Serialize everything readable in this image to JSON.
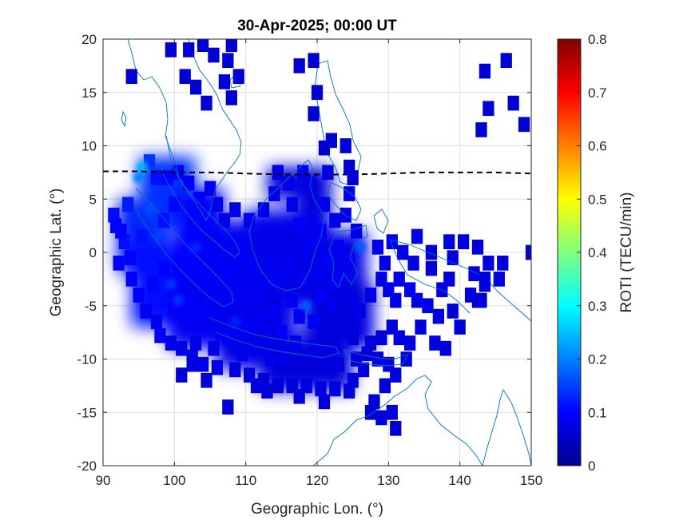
{
  "chart_data": {
    "type": "heatmap",
    "title": "30-Apr-2025; 00:00 UT",
    "xlabel": "Geographic Lon. (°)",
    "ylabel": "Geographic Lat. (°)",
    "xlim": [
      90,
      150
    ],
    "ylim": [
      -20,
      20
    ],
    "xticks": [
      "90",
      "100",
      "110",
      "120",
      "130",
      "140",
      "150"
    ],
    "yticks": [
      "20",
      "15",
      "10",
      "5",
      "0",
      "-5",
      "-10",
      "-15",
      "-20"
    ],
    "grid": true,
    "colormap": "jet",
    "colorbar": {
      "label": "ROTI (TECU/min)",
      "range": [
        0,
        0.8
      ],
      "ticks": [
        "0.8",
        "0.7",
        "0.6",
        "0.5",
        "0.4",
        "0.3",
        "0.2",
        "0.1",
        "0"
      ],
      "colors": [
        "#00008f",
        "#0000ff",
        "#0080ff",
        "#00ffff",
        "#80ff80",
        "#ffff00",
        "#ff8000",
        "#ff0000",
        "#800000"
      ]
    },
    "magnetic_equator": [
      [
        90,
        7.6
      ],
      [
        95,
        7.6
      ],
      [
        100,
        7.5
      ],
      [
        105,
        7.5
      ],
      [
        110,
        7.4
      ],
      [
        115,
        7.3
      ],
      [
        120,
        7.3
      ],
      [
        125,
        7.3
      ],
      [
        130,
        7.4
      ],
      [
        135,
        7.5
      ],
      [
        140,
        7.5
      ],
      [
        145,
        7.5
      ],
      [
        150,
        7.4
      ]
    ],
    "coastline_color": "#0072bd",
    "roti_regions": [
      {
        "lon": [
          92,
          99
        ],
        "lat": [
          -2,
          5
        ],
        "roti": 0.12
      },
      {
        "lon": [
          94,
          101
        ],
        "lat": [
          -7,
          1
        ],
        "roti": 0.11
      },
      {
        "lon": [
          95,
          103
        ],
        "lat": [
          2,
          9
        ],
        "roti": 0.14
      },
      {
        "lon": [
          99,
          108
        ],
        "lat": [
          -9,
          -2
        ],
        "roti": 0.09
      },
      {
        "lon": [
          100,
          107
        ],
        "lat": [
          -3,
          6
        ],
        "roti": 0.1
      },
      {
        "lon": [
          104,
          112
        ],
        "lat": [
          -5,
          3
        ],
        "roti": 0.09
      },
      {
        "lon": [
          106,
          117
        ],
        "lat": [
          -11,
          -5
        ],
        "roti": 0.08
      },
      {
        "lon": [
          110,
          118
        ],
        "lat": [
          -5,
          4
        ],
        "roti": 0.08
      },
      {
        "lon": [
          112,
          125
        ],
        "lat": [
          -13,
          -8
        ],
        "roti": 0.07
      },
      {
        "lon": [
          115,
          122
        ],
        "lat": [
          -4,
          4
        ],
        "roti": 0.08
      },
      {
        "lon": [
          118,
          128
        ],
        "lat": [
          -9,
          -3
        ],
        "roti": 0.07
      },
      {
        "lon": [
          120,
          127
        ],
        "lat": [
          -3,
          2
        ],
        "roti": 0.08
      },
      {
        "lon": [
          117,
          122
        ],
        "lat": [
          4,
          8
        ],
        "roti": 0.07
      },
      {
        "lon": [
          113,
          118
        ],
        "lat": [
          5,
          8
        ],
        "roti": 0.07
      }
    ],
    "roti_highlights": [
      {
        "lon": 95.5,
        "lat": 8.0,
        "roti": 0.24
      },
      {
        "lon": 95.0,
        "lat": 7.0,
        "roti": 0.2
      },
      {
        "lon": 96.5,
        "lat": 4.0,
        "roti": 0.16
      },
      {
        "lon": 98.0,
        "lat": 1.5,
        "roti": 0.15
      },
      {
        "lon": 99.5,
        "lat": -3.0,
        "roti": 0.14
      },
      {
        "lon": 100.5,
        "lat": -4.5,
        "roti": 0.14
      },
      {
        "lon": 103.0,
        "lat": 0.5,
        "roti": 0.13
      },
      {
        "lon": 118.5,
        "lat": -5.0,
        "roti": 0.17
      },
      {
        "lon": 126.0,
        "lat": 0.5,
        "roti": 0.17
      },
      {
        "lon": 108.5,
        "lat": -6.5,
        "roti": 0.12
      }
    ],
    "roti_cells": [
      [
        91.5,
        3.5,
        0.11
      ],
      [
        91.8,
        2.5,
        0.1
      ],
      [
        93.5,
        4.5,
        0.12
      ],
      [
        93.0,
        1.0,
        0.11
      ],
      [
        92.2,
        -1.0,
        0.1
      ],
      [
        94.0,
        -2.5,
        0.1
      ],
      [
        93.8,
        -0.5,
        0.1
      ],
      [
        95.0,
        -4.0,
        0.1
      ],
      [
        96.0,
        -5.5,
        0.09
      ],
      [
        97.5,
        -6.5,
        0.09
      ],
      [
        98.0,
        -7.8,
        0.09
      ],
      [
        99.5,
        -8.5,
        0.08
      ],
      [
        101.0,
        -9.0,
        0.08
      ],
      [
        102.5,
        -9.8,
        0.08
      ],
      [
        104.0,
        -10.5,
        0.08
      ],
      [
        106.0,
        -10.8,
        0.08
      ],
      [
        108.5,
        -11.0,
        0.07
      ],
      [
        110.5,
        -11.5,
        0.07
      ],
      [
        112.5,
        -12.0,
        0.07
      ],
      [
        114.5,
        -12.5,
        0.07
      ],
      [
        116.5,
        -12.5,
        0.07
      ],
      [
        118.5,
        -12.5,
        0.07
      ],
      [
        120.5,
        -12.8,
        0.07
      ],
      [
        122.5,
        -12.8,
        0.07
      ],
      [
        124.5,
        -13.0,
        0.07
      ],
      [
        113.0,
        -13.0,
        0.07
      ],
      [
        111.5,
        -12.5,
        0.07
      ],
      [
        117.5,
        -13.5,
        0.07
      ],
      [
        121.0,
        -14.0,
        0.07
      ],
      [
        126.5,
        -11.0,
        0.07
      ],
      [
        128.5,
        -10.0,
        0.07
      ],
      [
        127.5,
        -8.5,
        0.07
      ],
      [
        125.0,
        -8.0,
        0.07
      ],
      [
        123.5,
        -7.0,
        0.07
      ],
      [
        122.0,
        -6.5,
        0.07
      ],
      [
        101.0,
        -11.5,
        0.06
      ],
      [
        102.5,
        -10.5,
        0.07
      ],
      [
        104.5,
        -12.0,
        0.06
      ],
      [
        107.5,
        -14.5,
        0.06
      ],
      [
        103.0,
        -8.5,
        0.08
      ],
      [
        105.5,
        -9.0,
        0.08
      ],
      [
        106.5,
        -7.5,
        0.08
      ],
      [
        109.5,
        -9.5,
        0.08
      ],
      [
        111.5,
        -9.0,
        0.08
      ],
      [
        113.5,
        -10.0,
        0.08
      ],
      [
        115.5,
        -9.5,
        0.08
      ],
      [
        117.0,
        -8.5,
        0.08
      ],
      [
        119.5,
        -9.0,
        0.08
      ],
      [
        121.5,
        -9.5,
        0.07
      ],
      [
        123.0,
        -10.5,
        0.07
      ],
      [
        125.5,
        -10.0,
        0.07
      ],
      [
        127.0,
        -9.5,
        0.07
      ],
      [
        129.0,
        -8.0,
        0.07
      ],
      [
        130.5,
        -7.0,
        0.07
      ],
      [
        131.5,
        -8.0,
        0.07
      ],
      [
        133.0,
        -8.5,
        0.07
      ],
      [
        134.5,
        -7.0,
        0.07
      ],
      [
        136.5,
        -8.5,
        0.07
      ],
      [
        138.0,
        -9.0,
        0.07
      ],
      [
        130.0,
        -10.5,
        0.07
      ],
      [
        131.0,
        -11.5,
        0.07
      ],
      [
        132.5,
        -10.0,
        0.07
      ],
      [
        129.5,
        -12.5,
        0.07
      ],
      [
        128.0,
        -14.0,
        0.07
      ],
      [
        130.5,
        -15.0,
        0.07
      ],
      [
        129.0,
        -15.5,
        0.07
      ],
      [
        127.5,
        -15.0,
        0.06
      ],
      [
        125.0,
        -12.0,
        0.07
      ],
      [
        130.0,
        -3.5,
        0.08
      ],
      [
        129.0,
        -2.5,
        0.08
      ],
      [
        129.5,
        -1.0,
        0.08
      ],
      [
        128.5,
        0.5,
        0.08
      ],
      [
        130.5,
        1.0,
        0.08
      ],
      [
        132.0,
        0.0,
        0.08
      ],
      [
        133.5,
        -1.0,
        0.08
      ],
      [
        131.5,
        -2.5,
        0.08
      ],
      [
        133.0,
        -3.5,
        0.08
      ],
      [
        134.0,
        -4.5,
        0.08
      ],
      [
        135.5,
        -5.0,
        0.08
      ],
      [
        137.5,
        -3.5,
        0.07
      ],
      [
        138.5,
        -2.5,
        0.07
      ],
      [
        136.0,
        -1.5,
        0.07
      ],
      [
        139.0,
        -0.5,
        0.07
      ],
      [
        136.0,
        0.0,
        0.07
      ],
      [
        138.5,
        1.0,
        0.07
      ],
      [
        140.5,
        1.0,
        0.07
      ],
      [
        142.5,
        0.5,
        0.07
      ],
      [
        144.0,
        -1.0,
        0.07
      ],
      [
        145.5,
        -2.5,
        0.07
      ],
      [
        143.5,
        -3.0,
        0.07
      ],
      [
        142.0,
        -2.0,
        0.07
      ],
      [
        141.5,
        -4.0,
        0.07
      ],
      [
        143.0,
        -4.5,
        0.07
      ],
      [
        139.0,
        -5.5,
        0.07
      ],
      [
        137.0,
        -6.0,
        0.07
      ],
      [
        134.0,
        1.5,
        0.08
      ],
      [
        131.0,
        -4.5,
        0.08
      ],
      [
        127.5,
        -4.0,
        0.08
      ],
      [
        126.0,
        -5.5,
        0.08
      ],
      [
        124.5,
        -4.5,
        0.08
      ],
      [
        140.0,
        -7.0,
        0.07
      ],
      [
        124.0,
        3.5,
        0.08
      ],
      [
        125.5,
        2.0,
        0.08
      ],
      [
        122.5,
        3.0,
        0.08
      ],
      [
        121.0,
        4.5,
        0.08
      ],
      [
        124.5,
        5.5,
        0.08
      ],
      [
        119.0,
        6.5,
        0.08
      ],
      [
        118.0,
        7.5,
        0.08
      ],
      [
        116.0,
        6.5,
        0.08
      ],
      [
        114.5,
        7.5,
        0.07
      ],
      [
        114.0,
        5.5,
        0.08
      ],
      [
        116.5,
        4.5,
        0.08
      ],
      [
        112.5,
        4.0,
        0.08
      ],
      [
        110.5,
        3.0,
        0.08
      ],
      [
        108.5,
        4.0,
        0.08
      ],
      [
        107.0,
        3.0,
        0.08
      ],
      [
        106.0,
        4.5,
        0.08
      ],
      [
        105.0,
        6.0,
        0.09
      ],
      [
        103.5,
        5.0,
        0.09
      ],
      [
        102.0,
        6.5,
        0.09
      ],
      [
        100.5,
        7.5,
        0.1
      ],
      [
        99.0,
        7.0,
        0.1
      ],
      [
        97.5,
        7.0,
        0.11
      ],
      [
        96.5,
        8.5,
        0.14
      ],
      [
        105.5,
        1.5,
        0.09
      ],
      [
        108.0,
        1.0,
        0.09
      ],
      [
        109.5,
        -0.5,
        0.09
      ],
      [
        111.0,
        -1.5,
        0.09
      ],
      [
        107.5,
        -2.0,
        0.09
      ],
      [
        105.5,
        -3.5,
        0.09
      ],
      [
        109.0,
        -4.0,
        0.09
      ],
      [
        111.5,
        -3.5,
        0.09
      ],
      [
        113.5,
        -1.0,
        0.09
      ],
      [
        114.5,
        -2.5,
        0.09
      ],
      [
        116.0,
        -1.5,
        0.09
      ],
      [
        118.0,
        -2.5,
        0.09
      ],
      [
        120.0,
        -2.0,
        0.09
      ],
      [
        121.5,
        -0.5,
        0.09
      ],
      [
        123.0,
        0.5,
        0.09
      ],
      [
        124.5,
        -1.0,
        0.09
      ],
      [
        122.5,
        -3.0,
        0.09
      ],
      [
        120.5,
        -4.0,
        0.09
      ],
      [
        116.5,
        -4.5,
        0.09
      ],
      [
        114.0,
        -5.5,
        0.09
      ],
      [
        112.0,
        -6.5,
        0.09
      ],
      [
        110.0,
        -7.0,
        0.09
      ],
      [
        107.5,
        -8.0,
        0.09
      ],
      [
        104.0,
        -6.5,
        0.09
      ],
      [
        102.0,
        -5.0,
        0.1
      ],
      [
        100.5,
        -1.0,
        0.1
      ],
      [
        102.5,
        1.5,
        0.1
      ],
      [
        98.5,
        -1.5,
        0.1
      ],
      [
        97.0,
        -3.0,
        0.1
      ],
      [
        98.5,
        3.0,
        0.11
      ],
      [
        100.0,
        4.5,
        0.1
      ],
      [
        95.5,
        1.5,
        0.11
      ],
      [
        96.0,
        -1.0,
        0.11
      ],
      [
        92.5,
        2.0,
        0.1
      ],
      [
        119.0,
        1.0,
        0.09
      ],
      [
        117.5,
        2.5,
        0.09
      ],
      [
        120.5,
        2.0,
        0.09
      ],
      [
        122.0,
        -5.0,
        0.09
      ],
      [
        119.5,
        -6.5,
        0.09
      ],
      [
        117.5,
        -6.0,
        0.09
      ],
      [
        115.0,
        -7.5,
        0.09
      ],
      [
        113.0,
        -8.0,
        0.08
      ]
    ],
    "roti_isolated": [
      [
        94.0,
        16.5,
        0.06
      ],
      [
        99.5,
        19.0,
        0.06
      ],
      [
        102.0,
        19.0,
        0.06
      ],
      [
        104.0,
        19.5,
        0.06
      ],
      [
        105.5,
        18.5,
        0.06
      ],
      [
        108.0,
        19.5,
        0.06
      ],
      [
        107.5,
        18.0,
        0.06
      ],
      [
        101.5,
        16.5,
        0.06
      ],
      [
        103.0,
        15.5,
        0.06
      ],
      [
        104.5,
        14.0,
        0.06
      ],
      [
        107.0,
        16.0,
        0.06
      ],
      [
        108.0,
        14.5,
        0.06
      ],
      [
        109.0,
        16.5,
        0.06
      ],
      [
        117.5,
        17.5,
        0.06
      ],
      [
        119.5,
        18.0,
        0.06
      ],
      [
        119.5,
        13.0,
        0.06
      ],
      [
        120.0,
        15.0,
        0.06
      ],
      [
        121.0,
        9.8,
        0.06
      ],
      [
        122.0,
        10.5,
        0.06
      ],
      [
        124.5,
        8.0,
        0.06
      ],
      [
        125.0,
        7.0,
        0.06
      ],
      [
        124.0,
        10.0,
        0.06
      ],
      [
        121.5,
        7.5,
        0.07
      ],
      [
        143.5,
        17.0,
        0.06
      ],
      [
        146.5,
        18.0,
        0.06
      ],
      [
        144.0,
        13.5,
        0.06
      ],
      [
        147.5,
        14.0,
        0.06
      ],
      [
        143.0,
        11.5,
        0.06
      ],
      [
        149.0,
        12.0,
        0.06
      ],
      [
        150.0,
        0.0,
        0.06
      ],
      [
        146.0,
        -1.0,
        0.07
      ],
      [
        142.5,
        -4.5,
        0.07
      ],
      [
        143.5,
        -2.5,
        0.07
      ],
      [
        131.0,
        -16.5,
        0.06
      ]
    ]
  }
}
